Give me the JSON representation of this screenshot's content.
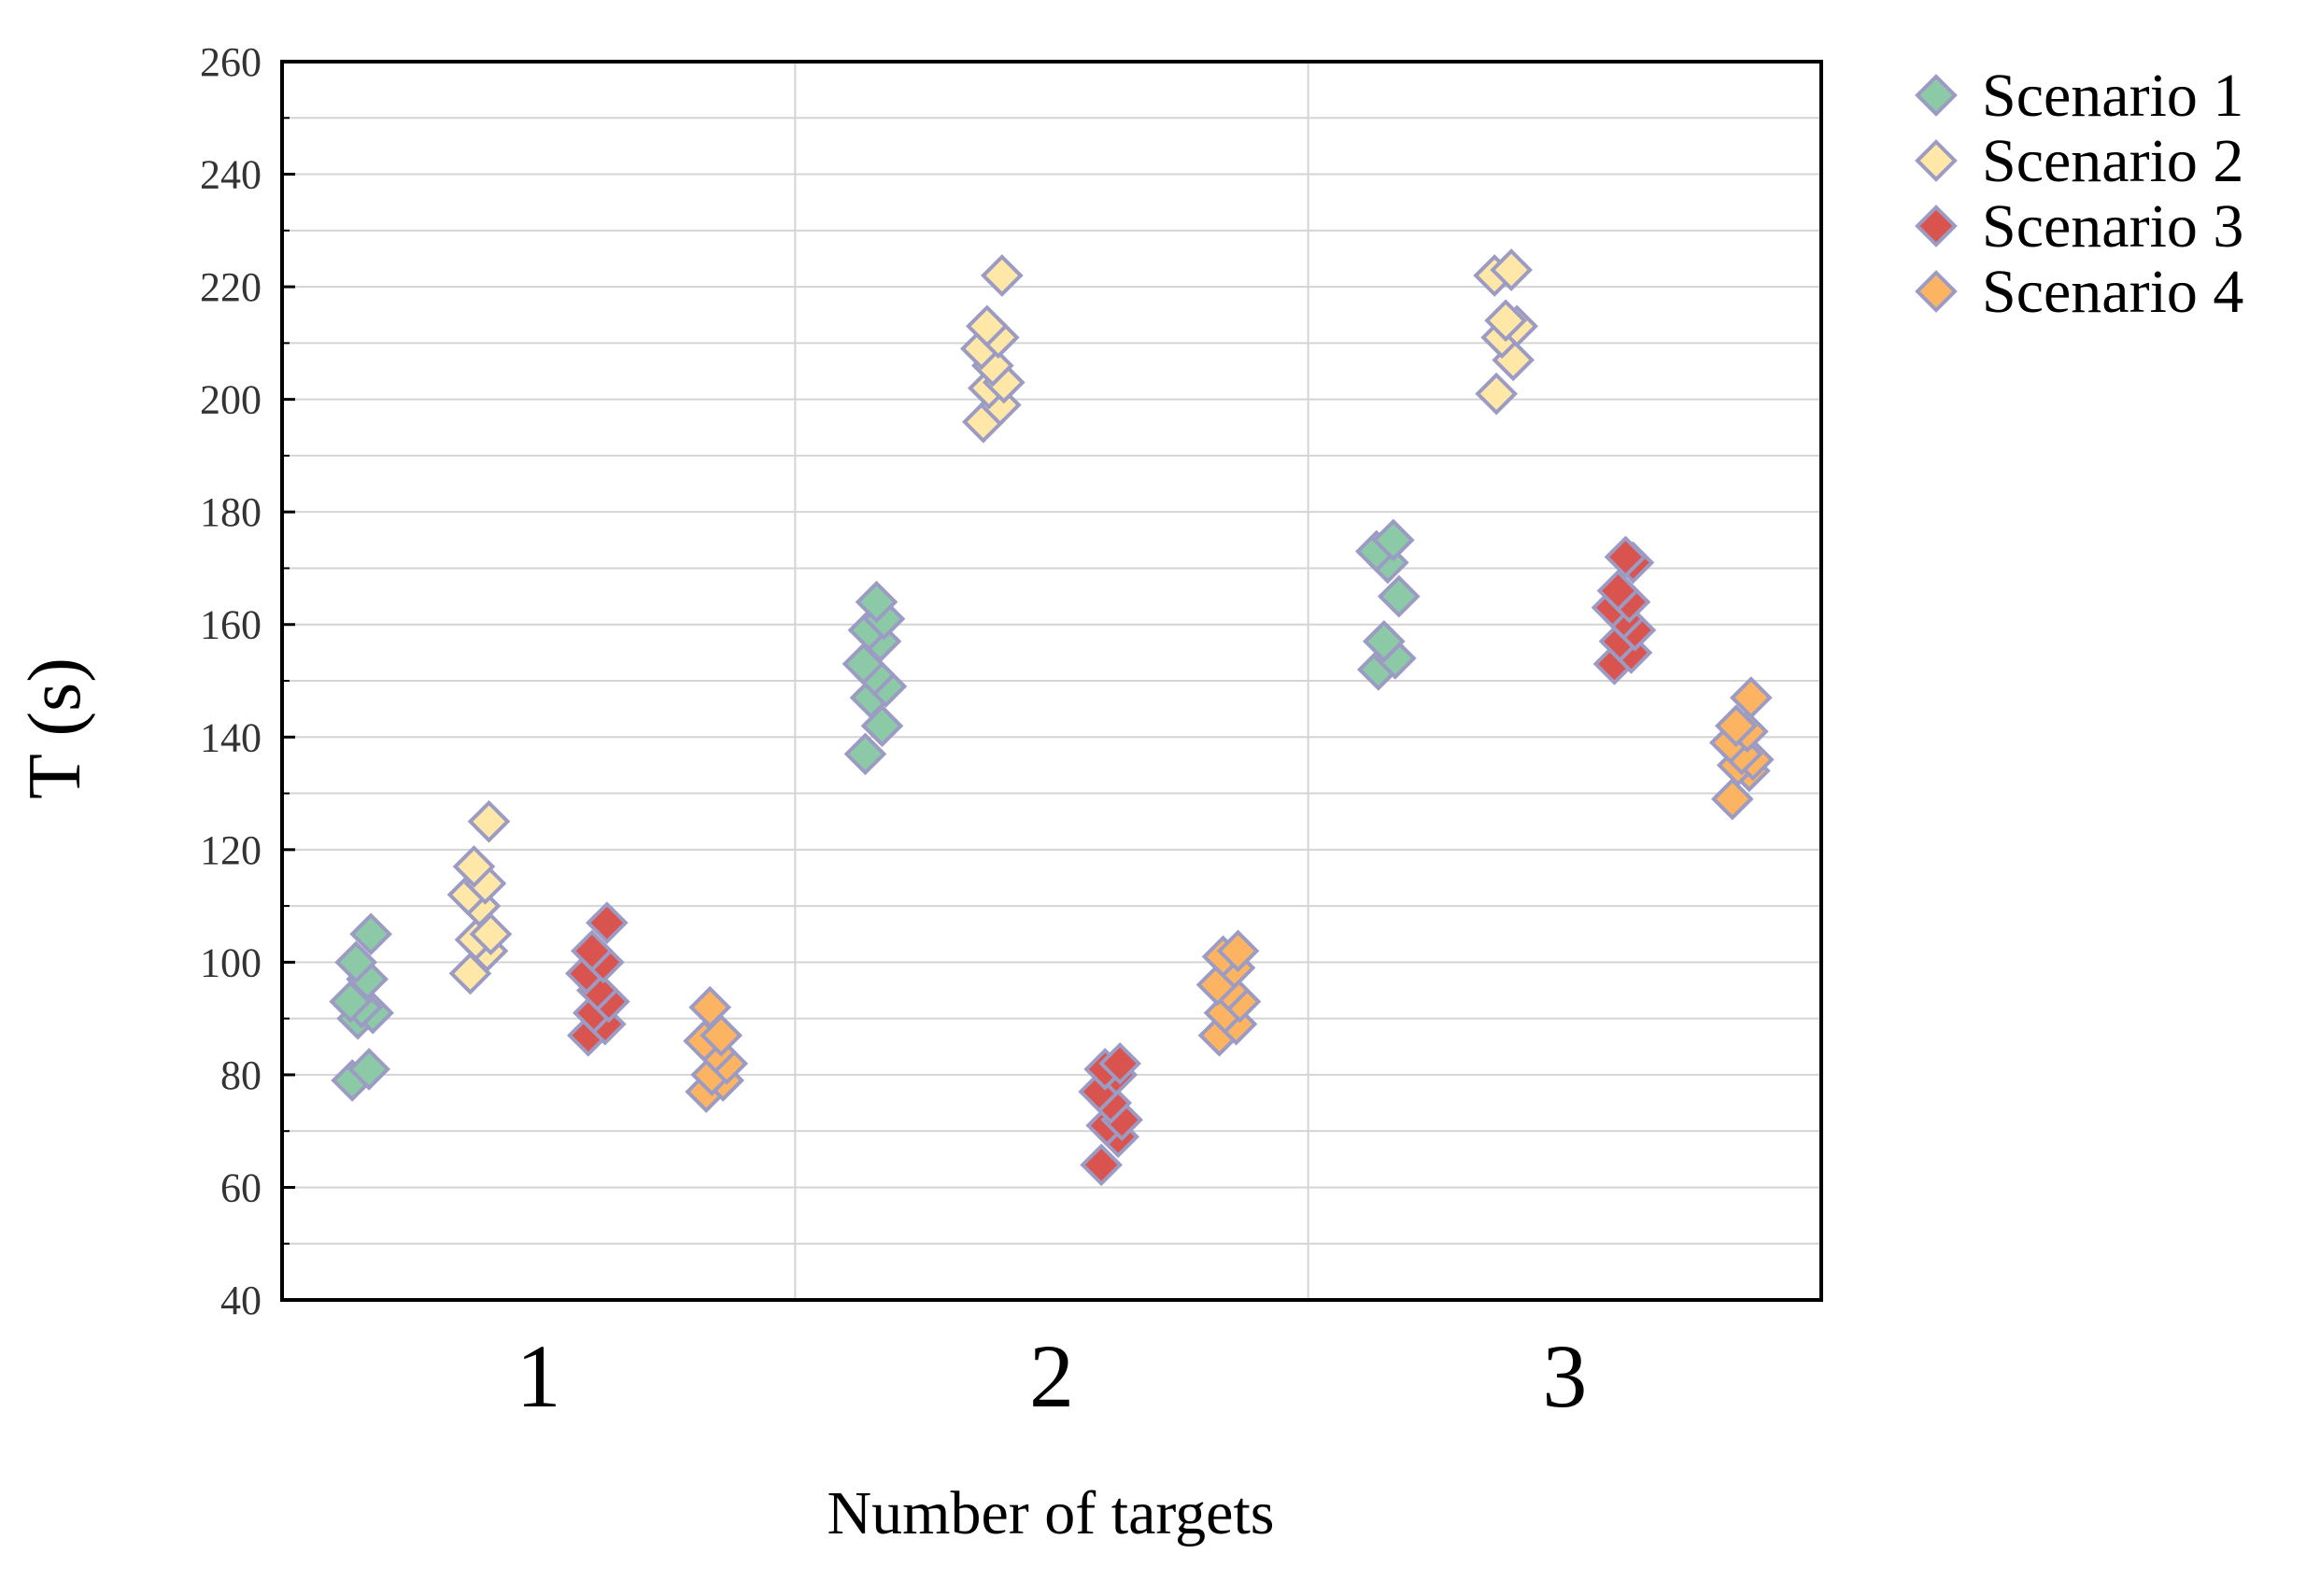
{
  "chart_data": {
    "type": "scatter",
    "xlabel": "Number of targets",
    "ylabel": "T (s)",
    "categories": [
      "1",
      "2",
      "3"
    ],
    "ylim": [
      40,
      260
    ],
    "yticks": [
      40,
      60,
      80,
      100,
      120,
      140,
      160,
      180,
      200,
      220,
      240,
      260
    ],
    "grid": true,
    "legend_position": "outside-top-right",
    "marker": "diamond",
    "marker_edge_color": "#9B9BC4",
    "series": [
      {
        "name": "Scenario 1",
        "color": "#8CC9A6",
        "points": [
          {
            "x": 1,
            "y": [
              79,
              81,
              90,
              91,
              92,
              93,
              97,
              100,
              105
            ]
          },
          {
            "x": 2,
            "y": [
              137,
              142,
              147,
              149,
              151,
              153,
              157,
              159,
              161,
              164
            ]
          },
          {
            "x": 3,
            "y": [
              152,
              154,
              157,
              165,
              171,
              173,
              175
            ]
          }
        ]
      },
      {
        "name": "Scenario 2",
        "color": "#FFE7A8",
        "points": [
          {
            "x": 1,
            "y": [
              98,
              102,
              104,
              105,
              110,
              112,
              114,
              117,
              125
            ]
          },
          {
            "x": 2,
            "y": [
              196,
              199,
              202,
              203,
              206,
              209,
              211,
              213,
              222
            ]
          },
          {
            "x": 3,
            "y": [
              201,
              207,
              211,
              213,
              214,
              222,
              223
            ]
          }
        ]
      },
      {
        "name": "Scenario 3",
        "color": "#D9534F",
        "points": [
          {
            "x": 1,
            "y": [
              87,
              89,
              91,
              93,
              95,
              98,
              100,
              102,
              107
            ]
          },
          {
            "x": 2,
            "y": [
              64,
              69,
              71,
              72,
              75,
              77,
              80,
              81,
              82
            ]
          },
          {
            "x": 3,
            "y": [
              153,
              155,
              157,
              159,
              161,
              163,
              164,
              166,
              171,
              172
            ]
          }
        ]
      },
      {
        "name": "Scenario 4",
        "color": "#FDB462",
        "points": [
          {
            "x": 1,
            "y": [
              77,
              79,
              80,
              82,
              84,
              86,
              87,
              92
            ]
          },
          {
            "x": 2,
            "y": [
              87,
              89,
              91,
              93,
              95,
              96,
              99,
              101,
              102
            ]
          },
          {
            "x": 3,
            "y": [
              129,
              134,
              135,
              136,
              137,
              139,
              141,
              142,
              147
            ]
          }
        ]
      }
    ]
  }
}
